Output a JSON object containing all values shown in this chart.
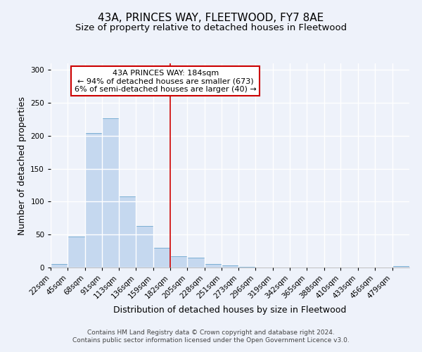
{
  "title": "43A, PRINCES WAY, FLEETWOOD, FY7 8AE",
  "subtitle": "Size of property relative to detached houses in Fleetwood",
  "xlabel": "Distribution of detached houses by size in Fleetwood",
  "ylabel": "Number of detached properties",
  "bar_values": [
    5,
    47,
    204,
    227,
    108,
    63,
    30,
    17,
    15,
    5,
    3,
    1,
    0,
    0,
    0,
    0,
    0,
    0,
    0,
    0,
    2
  ],
  "bar_labels": [
    "22sqm",
    "45sqm",
    "68sqm",
    "91sqm",
    "113sqm",
    "136sqm",
    "159sqm",
    "182sqm",
    "205sqm",
    "228sqm",
    "251sqm",
    "273sqm",
    "296sqm",
    "319sqm",
    "342sqm",
    "365sqm",
    "388sqm",
    "410sqm",
    "433sqm",
    "456sqm",
    "479sqm"
  ],
  "bin_edges": [
    22,
    45,
    68,
    91,
    113,
    136,
    159,
    182,
    205,
    228,
    251,
    273,
    296,
    319,
    342,
    365,
    388,
    410,
    433,
    456,
    479,
    502
  ],
  "bar_color": "#c5d8ef",
  "bar_edge_color": "#7bafd4",
  "vline_x": 182,
  "vline_color": "#cc0000",
  "ylim": [
    0,
    310
  ],
  "yticks": [
    0,
    50,
    100,
    150,
    200,
    250,
    300
  ],
  "annotation_title": "43A PRINCES WAY: 184sqm",
  "annotation_line1": "← 94% of detached houses are smaller (673)",
  "annotation_line2": "6% of semi-detached houses are larger (40) →",
  "annotation_box_color": "#ffffff",
  "annotation_box_edge": "#cc0000",
  "footer1": "Contains HM Land Registry data © Crown copyright and database right 2024.",
  "footer2": "Contains public sector information licensed under the Open Government Licence v3.0.",
  "background_color": "#eef2fa",
  "plot_bg_color": "#eef2fa",
  "grid_color": "#ffffff",
  "title_fontsize": 11,
  "subtitle_fontsize": 9.5,
  "axis_label_fontsize": 9,
  "tick_fontsize": 7.5,
  "footer_fontsize": 6.5,
  "ann_fontsize": 8
}
